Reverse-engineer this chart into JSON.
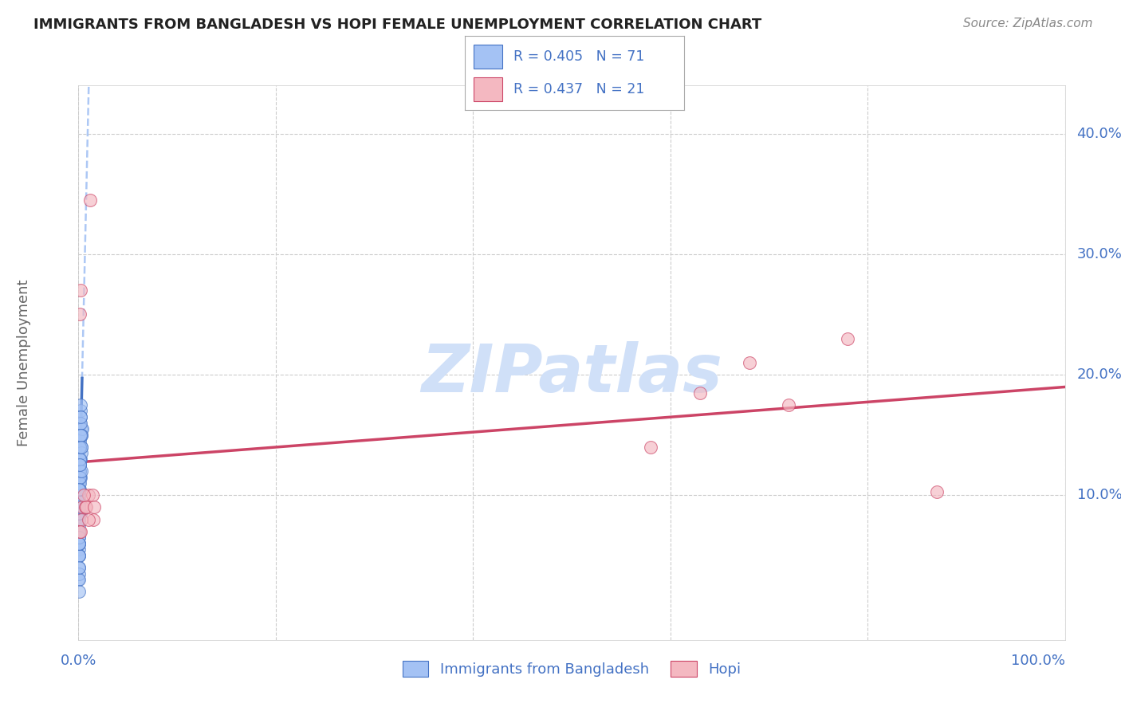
{
  "title": "IMMIGRANTS FROM BANGLADESH VS HOPI FEMALE UNEMPLOYMENT CORRELATION CHART",
  "source": "Source: ZipAtlas.com",
  "ylabel": "Female Unemployment",
  "y_ticks": [
    0.1,
    0.2,
    0.3,
    0.4
  ],
  "y_tick_labels": [
    "10.0%",
    "20.0%",
    "30.0%",
    "40.0%"
  ],
  "xlim": [
    0.0,
    1.0
  ],
  "ylim": [
    -0.02,
    0.44
  ],
  "legend1_label": "R = 0.405   N = 71",
  "legend2_label": "R = 0.437   N = 21",
  "blue_fill": "#a4c2f4",
  "blue_edge": "#4472c4",
  "pink_fill": "#f4b8c1",
  "pink_edge": "#cc4466",
  "blue_line_color": "#4472c4",
  "pink_line_color": "#cc4466",
  "dashed_line_color": "#a4c2f4",
  "legend_text_color": "#4472c4",
  "axis_label_color": "#4472c4",
  "bg_color": "#ffffff",
  "grid_color": "#cccccc",
  "watermark": "ZIPatlas",
  "watermark_color": "#d0e0f8",
  "bottom_legend_labels": [
    "Immigrants from Bangladesh",
    "Hopi"
  ],
  "bangladesh_x": [
    0.0008,
    0.001,
    0.0012,
    0.0005,
    0.0003,
    0.0002,
    0.0001,
    0.0015,
    0.0018,
    0.0007,
    0.0004,
    0.0006,
    0.0009,
    0.0011,
    0.0013,
    0.0016,
    0.002,
    0.0025,
    0.0006,
    0.0003,
    0.0002,
    0.0001,
    5e-05,
    0.0001,
    0.0002,
    0.0005,
    0.0008,
    0.0012,
    0.0015,
    0.0019,
    0.003,
    0.0001,
    0.0003,
    0.0006,
    0.0009,
    0.0011,
    0.0016,
    0.0021,
    0.0024,
    0.0028,
    0.0035,
    0.0001,
    0.0002,
    0.0004,
    0.0006,
    0.001,
    0.0003,
    0.0005,
    0.0007,
    0.0011,
    0.0014,
    0.0018,
    0.0022,
    0.0027,
    0.0032,
    0.0002,
    0.0004,
    0.0008,
    0.0012,
    0.0015,
    0.0001,
    0.0006,
    0.0009,
    0.0013,
    0.0017,
    0.0021,
    0.0026,
    0.0031,
    0.0002,
    0.0007,
    0.001
  ],
  "bangladesh_y": [
    0.12,
    0.13,
    0.15,
    0.08,
    0.07,
    0.065,
    0.055,
    0.095,
    0.085,
    0.075,
    0.1,
    0.11,
    0.125,
    0.115,
    0.14,
    0.16,
    0.17,
    0.155,
    0.09,
    0.06,
    0.05,
    0.04,
    0.03,
    0.06,
    0.07,
    0.1,
    0.115,
    0.13,
    0.145,
    0.165,
    0.14,
    0.035,
    0.05,
    0.08,
    0.105,
    0.12,
    0.14,
    0.115,
    0.13,
    0.15,
    0.155,
    0.03,
    0.05,
    0.07,
    0.095,
    0.11,
    0.06,
    0.085,
    0.105,
    0.12,
    0.14,
    0.16,
    0.175,
    0.135,
    0.15,
    0.04,
    0.065,
    0.095,
    0.125,
    0.14,
    0.02,
    0.09,
    0.115,
    0.13,
    0.15,
    0.165,
    0.12,
    0.14,
    0.06,
    0.105,
    0.125
  ],
  "hopi_x": [
    0.002,
    0.001,
    0.012,
    0.015,
    0.004,
    0.007,
    0.01,
    0.003,
    0.008,
    0.014,
    0.005,
    0.001,
    0.002,
    0.01,
    0.016,
    0.58,
    0.72,
    0.87,
    0.78,
    0.68,
    0.63
  ],
  "hopi_y": [
    0.27,
    0.25,
    0.345,
    0.08,
    0.09,
    0.09,
    0.1,
    0.08,
    0.09,
    0.1,
    0.1,
    0.07,
    0.07,
    0.08,
    0.09,
    0.14,
    0.175,
    0.103,
    0.23,
    0.21,
    0.185
  ]
}
